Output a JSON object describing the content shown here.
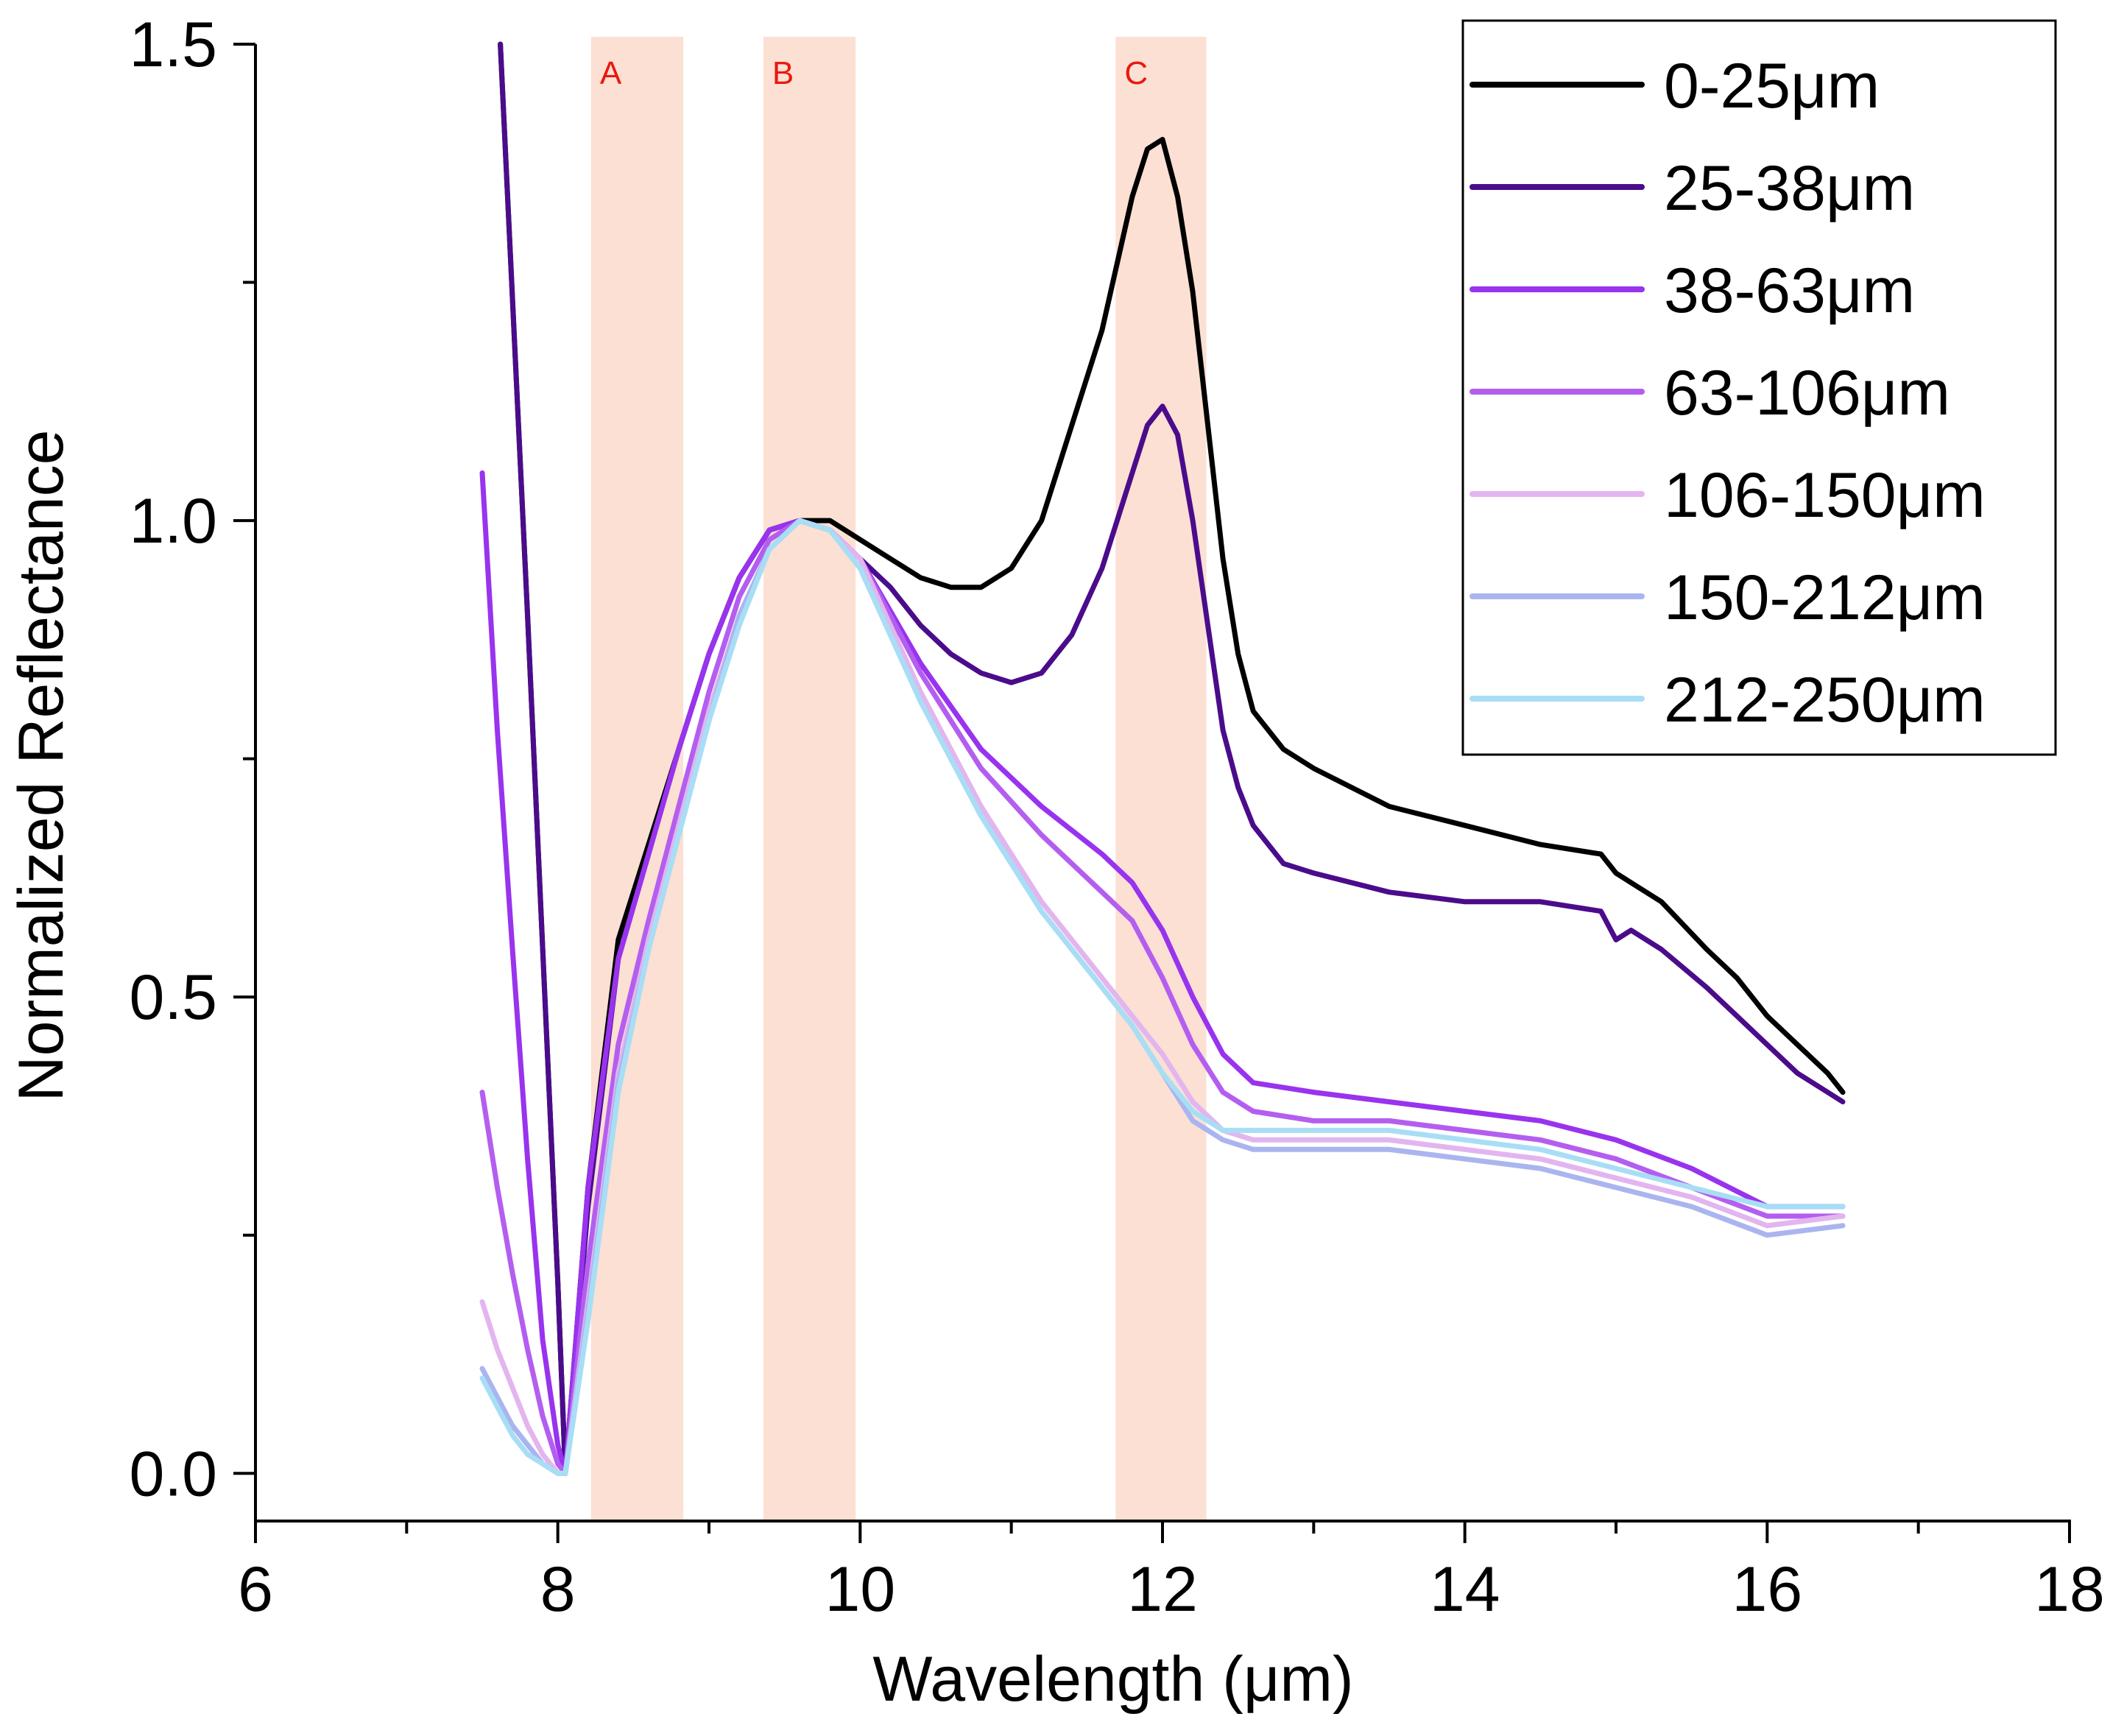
{
  "chart_data": {
    "type": "line",
    "title": "",
    "xlabel": "Wavelength (μm)",
    "ylabel": "Normalized Reflectance",
    "xlim": [
      6,
      18
    ],
    "ylim": [
      -0.05,
      1.5
    ],
    "xticks": [
      {
        "value": 6,
        "label": "6"
      },
      {
        "value": 8,
        "label": "8"
      },
      {
        "value": 10,
        "label": "10"
      },
      {
        "value": 12,
        "label": "12"
      },
      {
        "value": 14,
        "label": "14"
      },
      {
        "value": 16,
        "label": "16"
      },
      {
        "value": 18,
        "label": "18"
      }
    ],
    "yticks": [
      {
        "value": 0.0,
        "label": "0.0"
      },
      {
        "value": 0.5,
        "label": "0.5"
      },
      {
        "value": 1.0,
        "label": "1.0"
      },
      {
        "value": 1.5,
        "label": "1.5"
      }
    ],
    "grid": false,
    "legend_position": "top-right",
    "bands": [
      {
        "label": "A",
        "x0": 8.22,
        "x1": 8.83,
        "color": "#fbe0d3",
        "label_color": "#e8190f"
      },
      {
        "label": "B",
        "x0": 9.36,
        "x1": 9.97,
        "color": "#fbe0d3",
        "label_color": "#e8190f"
      },
      {
        "label": "C",
        "x0": 11.69,
        "x1": 12.29,
        "color": "#fbe0d3",
        "label_color": "#e8190f"
      }
    ],
    "series": [
      {
        "name": "0-25μm",
        "color": "#000000",
        "x": [
          7.62,
          7.8,
          8.0,
          8.05,
          8.2,
          8.4,
          8.6,
          8.8,
          9.0,
          9.2,
          9.4,
          9.6,
          9.8,
          10.0,
          10.2,
          10.4,
          10.6,
          10.8,
          11.0,
          11.2,
          11.4,
          11.6,
          11.8,
          11.9,
          12.0,
          12.1,
          12.2,
          12.3,
          12.4,
          12.5,
          12.6,
          12.8,
          13.0,
          13.5,
          14.0,
          14.5,
          14.9,
          15.0,
          15.1,
          15.3,
          15.6,
          15.8,
          16.0,
          16.2,
          16.4,
          16.5
        ],
        "y": [
          1.5,
          0.9,
          0.2,
          0.0,
          0.3,
          0.56,
          0.66,
          0.76,
          0.86,
          0.94,
          0.99,
          1.0,
          1.0,
          0.98,
          0.96,
          0.94,
          0.93,
          0.93,
          0.95,
          1.0,
          1.1,
          1.2,
          1.34,
          1.39,
          1.4,
          1.34,
          1.24,
          1.1,
          0.96,
          0.86,
          0.8,
          0.76,
          0.74,
          0.7,
          0.68,
          0.66,
          0.65,
          0.63,
          0.62,
          0.6,
          0.55,
          0.52,
          0.48,
          0.45,
          0.42,
          0.4
        ]
      },
      {
        "name": "25-38μm",
        "color": "#4b0c8b",
        "x": [
          7.62,
          7.8,
          8.0,
          8.05,
          8.2,
          8.4,
          8.6,
          8.8,
          9.0,
          9.2,
          9.4,
          9.6,
          9.8,
          10.0,
          10.2,
          10.4,
          10.6,
          10.8,
          11.0,
          11.2,
          11.4,
          11.6,
          11.8,
          11.9,
          12.0,
          12.1,
          12.2,
          12.3,
          12.4,
          12.5,
          12.6,
          12.8,
          13.0,
          13.5,
          14.0,
          14.5,
          14.9,
          15.0,
          15.1,
          15.3,
          15.6,
          15.8,
          16.0,
          16.2,
          16.4,
          16.5
        ],
        "y": [
          1.5,
          0.9,
          0.2,
          0.0,
          0.28,
          0.54,
          0.65,
          0.76,
          0.86,
          0.94,
          0.99,
          1.0,
          0.99,
          0.96,
          0.93,
          0.89,
          0.86,
          0.84,
          0.83,
          0.84,
          0.88,
          0.95,
          1.05,
          1.1,
          1.12,
          1.09,
          1.0,
          0.89,
          0.78,
          0.72,
          0.68,
          0.64,
          0.63,
          0.61,
          0.6,
          0.6,
          0.59,
          0.56,
          0.57,
          0.55,
          0.51,
          0.48,
          0.45,
          0.42,
          0.4,
          0.39
        ]
      },
      {
        "name": "38-63μm",
        "color": "#9933ee",
        "x": [
          7.5,
          7.6,
          7.7,
          7.8,
          7.9,
          8.0,
          8.05,
          8.2,
          8.4,
          8.6,
          8.8,
          9.0,
          9.2,
          9.4,
          9.6,
          9.8,
          10.0,
          10.4,
          10.8,
          11.2,
          11.6,
          11.8,
          12.0,
          12.2,
          12.4,
          12.6,
          13.0,
          13.5,
          14.0,
          14.5,
          15.0,
          15.5,
          16.0,
          16.5
        ],
        "y": [
          1.05,
          0.78,
          0.55,
          0.33,
          0.14,
          0.03,
          0.0,
          0.3,
          0.54,
          0.65,
          0.76,
          0.86,
          0.94,
          0.99,
          1.0,
          0.99,
          0.96,
          0.85,
          0.76,
          0.7,
          0.65,
          0.62,
          0.57,
          0.5,
          0.44,
          0.41,
          0.4,
          0.39,
          0.38,
          0.37,
          0.35,
          0.32,
          0.28,
          0.28
        ]
      },
      {
        "name": "63-106μm",
        "color": "#b45ef0",
        "x": [
          7.5,
          7.6,
          7.7,
          7.8,
          7.9,
          8.0,
          8.05,
          8.2,
          8.4,
          8.6,
          8.8,
          9.0,
          9.2,
          9.4,
          9.6,
          9.8,
          10.0,
          10.4,
          10.8,
          11.2,
          11.6,
          11.8,
          12.0,
          12.2,
          12.4,
          12.6,
          13.0,
          13.5,
          14.0,
          14.5,
          15.0,
          15.5,
          16.0,
          16.5
        ],
        "y": [
          0.4,
          0.3,
          0.21,
          0.13,
          0.06,
          0.01,
          0.0,
          0.22,
          0.45,
          0.58,
          0.7,
          0.82,
          0.92,
          0.98,
          1.0,
          0.99,
          0.96,
          0.84,
          0.74,
          0.67,
          0.61,
          0.58,
          0.52,
          0.45,
          0.4,
          0.38,
          0.37,
          0.37,
          0.36,
          0.35,
          0.33,
          0.3,
          0.27,
          0.27
        ]
      },
      {
        "name": "106-150μm",
        "color": "#e3b5ef",
        "x": [
          7.5,
          7.6,
          7.7,
          7.8,
          7.9,
          8.0,
          8.05,
          8.2,
          8.4,
          8.6,
          8.8,
          9.0,
          9.2,
          9.4,
          9.6,
          9.8,
          10.0,
          10.4,
          10.8,
          11.2,
          11.6,
          11.8,
          12.0,
          12.2,
          12.4,
          12.6,
          13.0,
          13.5,
          14.0,
          14.5,
          15.0,
          15.5,
          16.0,
          16.5
        ],
        "y": [
          0.18,
          0.13,
          0.09,
          0.05,
          0.02,
          0.0,
          0.0,
          0.18,
          0.42,
          0.56,
          0.68,
          0.8,
          0.9,
          0.97,
          1.0,
          0.99,
          0.96,
          0.82,
          0.7,
          0.6,
          0.52,
          0.48,
          0.44,
          0.39,
          0.36,
          0.35,
          0.35,
          0.35,
          0.34,
          0.33,
          0.31,
          0.29,
          0.26,
          0.27
        ]
      },
      {
        "name": "150-212μm",
        "color": "#aab5ef",
        "x": [
          7.5,
          7.6,
          7.7,
          7.8,
          7.9,
          8.0,
          8.05,
          8.2,
          8.4,
          8.6,
          8.8,
          9.0,
          9.2,
          9.4,
          9.6,
          9.8,
          10.0,
          10.4,
          10.8,
          11.2,
          11.6,
          11.8,
          12.0,
          12.2,
          12.4,
          12.6,
          13.0,
          13.5,
          14.0,
          14.5,
          15.0,
          15.5,
          16.0,
          16.5
        ],
        "y": [
          0.11,
          0.08,
          0.05,
          0.03,
          0.01,
          0.0,
          0.0,
          0.17,
          0.41,
          0.55,
          0.67,
          0.79,
          0.9,
          0.97,
          1.0,
          0.99,
          0.95,
          0.81,
          0.69,
          0.59,
          0.51,
          0.47,
          0.42,
          0.37,
          0.35,
          0.34,
          0.34,
          0.34,
          0.33,
          0.32,
          0.3,
          0.28,
          0.25,
          0.26
        ]
      },
      {
        "name": "212-250μm",
        "color": "#a8def5",
        "x": [
          7.5,
          7.6,
          7.7,
          7.8,
          7.9,
          8.0,
          8.05,
          8.2,
          8.4,
          8.6,
          8.8,
          9.0,
          9.2,
          9.4,
          9.6,
          9.8,
          10.0,
          10.4,
          10.8,
          11.2,
          11.6,
          11.8,
          12.0,
          12.2,
          12.4,
          12.6,
          13.0,
          13.5,
          14.0,
          14.5,
          15.0,
          15.5,
          16.0,
          16.5
        ],
        "y": [
          0.1,
          0.07,
          0.04,
          0.02,
          0.01,
          0.0,
          0.0,
          0.16,
          0.4,
          0.55,
          0.67,
          0.79,
          0.89,
          0.97,
          1.0,
          0.99,
          0.95,
          0.81,
          0.69,
          0.59,
          0.51,
          0.47,
          0.42,
          0.38,
          0.36,
          0.36,
          0.36,
          0.36,
          0.35,
          0.34,
          0.32,
          0.3,
          0.28,
          0.28
        ]
      }
    ]
  }
}
